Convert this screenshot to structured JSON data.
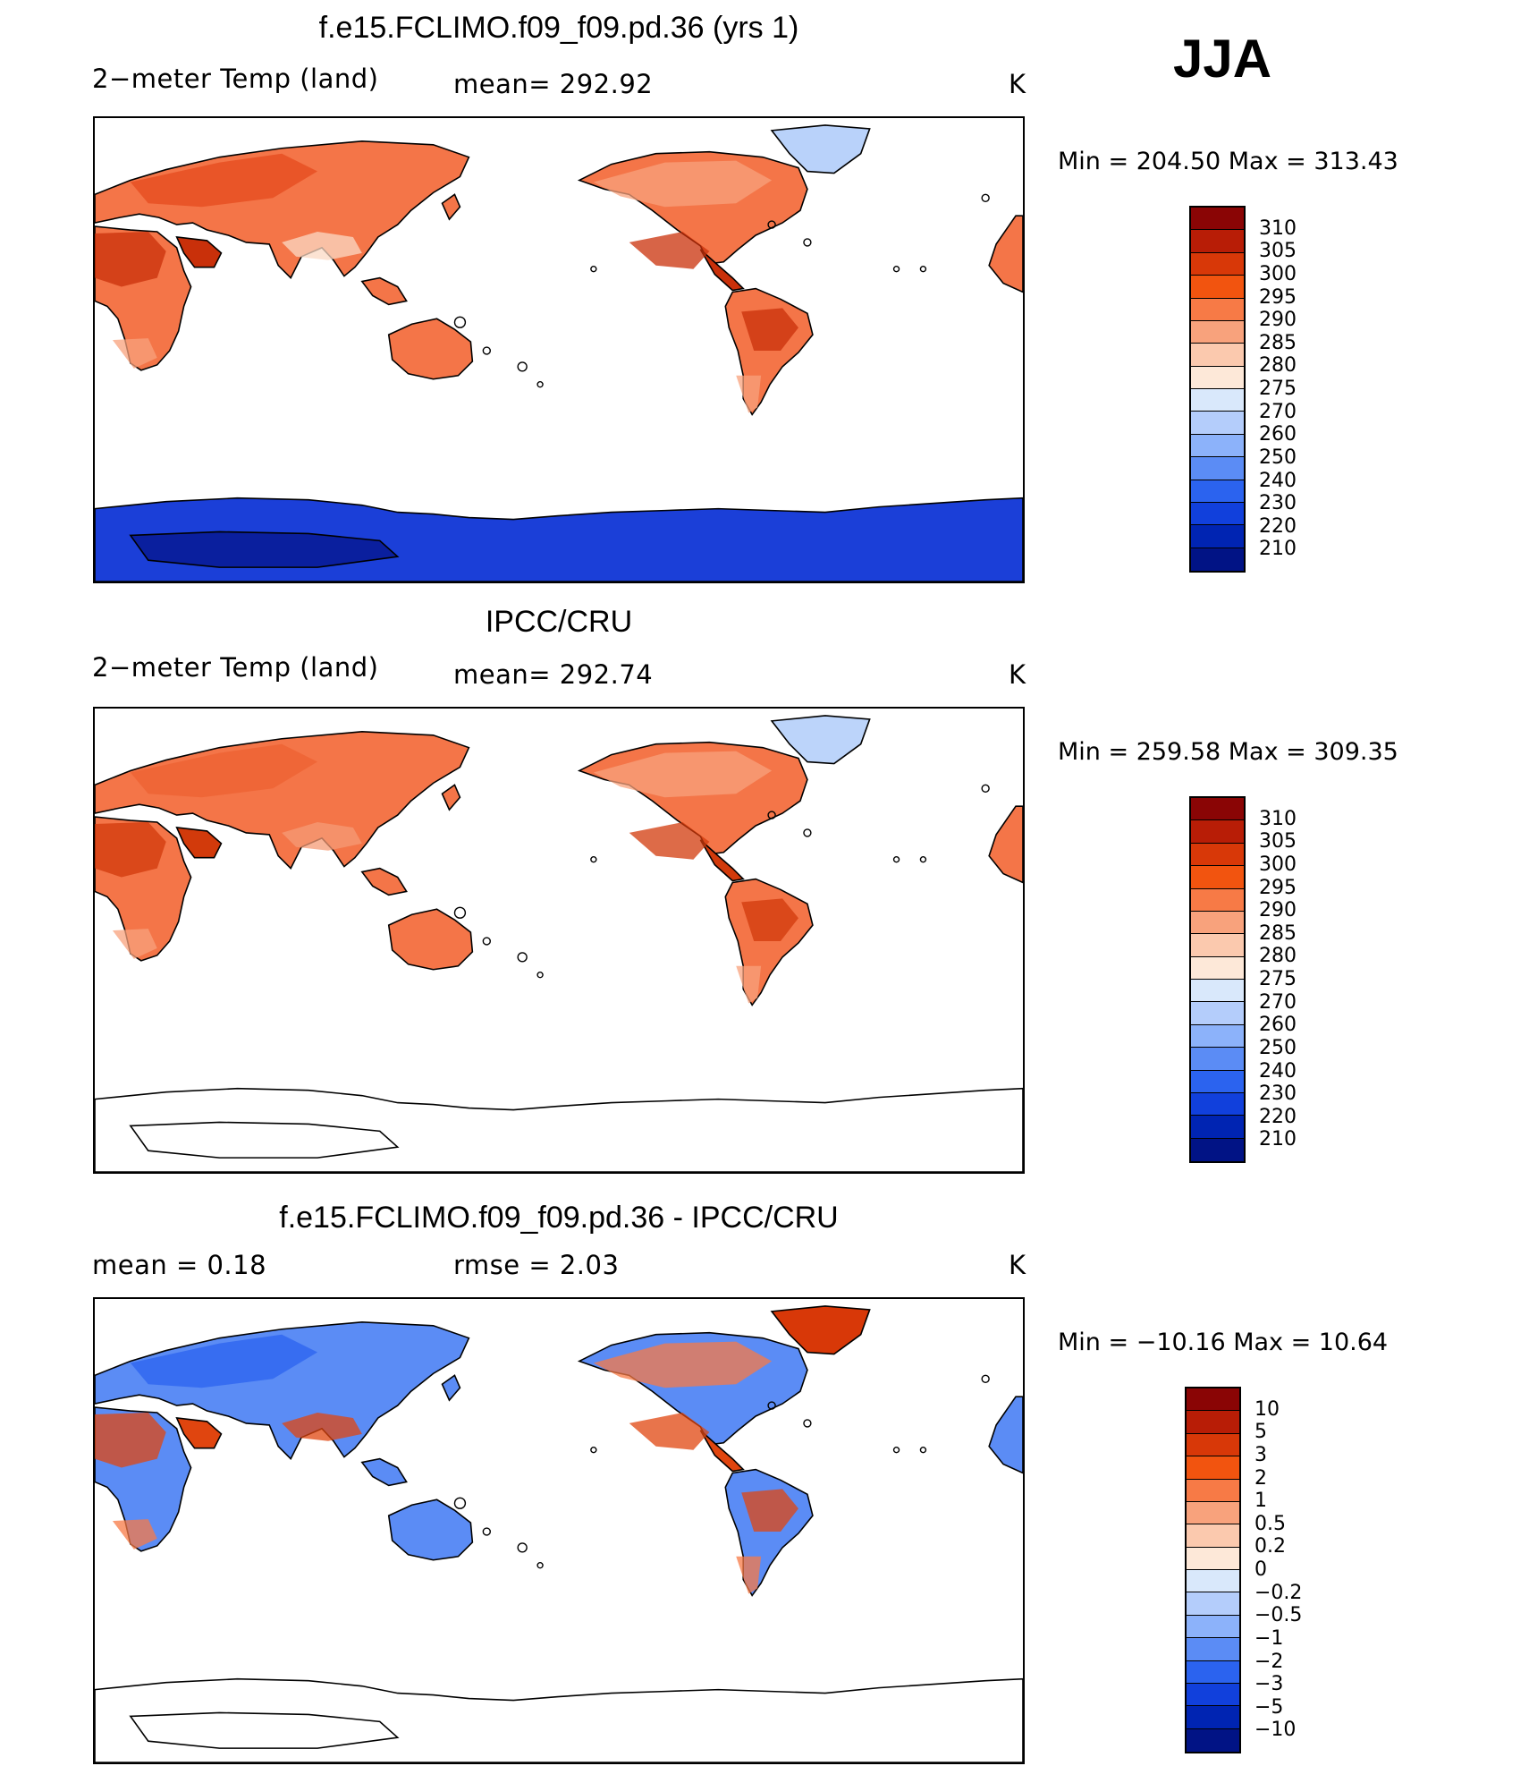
{
  "season": "JJA",
  "panels": [
    {
      "id": "model",
      "title": "f.e15.FCLIMO.f09_f09.pd.36 (yrs 1)",
      "left_label": "2−meter Temp (land)",
      "mid_label": "mean=  292.92",
      "unit": "K",
      "minmax": "Min  =  204.50  Max  =  313.43",
      "levels": [
        "310",
        "305",
        "300",
        "295",
        "290",
        "285",
        "280",
        "275",
        "270",
        "260",
        "250",
        "240",
        "230",
        "220",
        "210"
      ],
      "level_colors": [
        "#8a0505",
        "#b81d06",
        "#d83808",
        "#f2540f",
        "#f77a46",
        "#f8a27c",
        "#fbc9ae",
        "#fde8d8",
        "#d9e8fb",
        "#b4cdfb",
        "#8cb2fa",
        "#5b8cf5",
        "#2b63ef",
        "#1140dc",
        "#0024b2",
        "#011385"
      ],
      "map_style": {
        "land": "#f47548",
        "europe": "#e64b1d",
        "hot": "#c9300a",
        "mild": "#f8a27c",
        "tibet": "#fbd9c4",
        "greenland": "#b9d2fa",
        "antarctica": "#1b3fd8",
        "antarctica_deep": "#0a1f9e"
      }
    },
    {
      "id": "obs",
      "title": "IPCC/CRU",
      "left_label": "2−meter Temp (land)",
      "mid_label": "mean=  292.74",
      "unit": "K",
      "minmax": "Min  =  259.58  Max  =  309.35",
      "levels": [
        "310",
        "305",
        "300",
        "295",
        "290",
        "285",
        "280",
        "275",
        "270",
        "260",
        "250",
        "240",
        "230",
        "220",
        "210"
      ],
      "level_colors": [
        "#8a0505",
        "#b81d06",
        "#d83808",
        "#f2540f",
        "#f77a46",
        "#f8a27c",
        "#fbc9ae",
        "#fde8d8",
        "#d9e8fb",
        "#b4cdfb",
        "#8cb2fa",
        "#5b8cf5",
        "#2b63ef",
        "#1140dc",
        "#0024b2",
        "#011385"
      ],
      "map_style": {
        "land": "#f47548",
        "europe": "#ee6232",
        "hot": "#d23a0b",
        "mild": "#f8a27c",
        "tibet": "#f59b76",
        "greenland": "#bcd4fa",
        "antarctica": "#ffffff",
        "antarctica_deep": "#ffffff"
      }
    },
    {
      "id": "diff",
      "title": "f.e15.FCLIMO.f09_f09.pd.36 - IPCC/CRU",
      "left_label": "mean  =     0.18",
      "mid_label": "rmse  =     2.03",
      "unit": "K",
      "minmax": "Min  =  −10.16  Max  =    10.64",
      "levels": [
        "10",
        "5",
        "3",
        "2",
        "1",
        "0.5",
        "0.2",
        "0",
        "−0.2",
        "−0.5",
        "−1",
        "−2",
        "−3",
        "−5",
        "−10"
      ],
      "level_colors": [
        "#8a0505",
        "#b81d06",
        "#d83808",
        "#f2540f",
        "#f77a46",
        "#f8a27c",
        "#fbc9ae",
        "#fde8d8",
        "#d9e8fb",
        "#b4cdfb",
        "#8cb2fa",
        "#5b8cf5",
        "#2b63ef",
        "#1140dc",
        "#0024b2",
        "#011385"
      ],
      "map_style": {
        "land": "#5b8cf5",
        "europe": "#2b63ef",
        "hot": "#e0450f",
        "mild": "#f77a46",
        "tibet": "#e0450f",
        "greenland": "#d83808",
        "antarctica": "#ffffff",
        "antarctica_deep": "#ffffff"
      }
    }
  ]
}
